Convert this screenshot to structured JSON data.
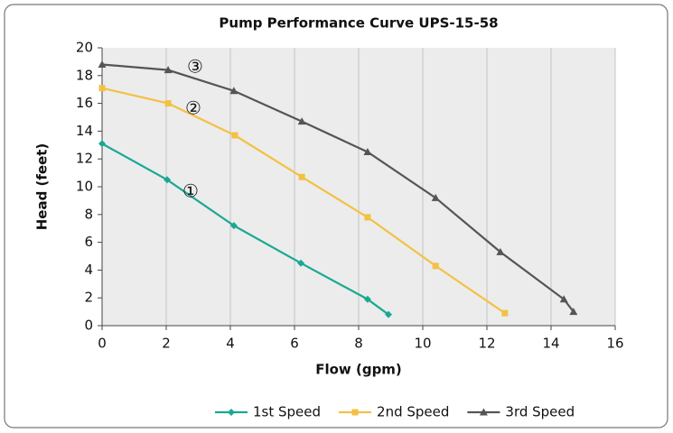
{
  "chart_data": {
    "type": "line",
    "title": "Pump Performance Curve UPS-15-58",
    "xlabel": "Flow (gpm)",
    "ylabel": "Head (feet)",
    "xlim": [
      0,
      16
    ],
    "xticks": [
      0,
      2,
      4,
      6,
      8,
      10,
      12,
      14,
      16
    ],
    "ylim": [
      0,
      20
    ],
    "yticks": [
      0,
      2,
      4,
      6,
      8,
      10,
      12,
      14,
      16,
      18,
      20
    ],
    "grid": "x",
    "legend": "bottom",
    "annotations": [
      "①",
      "②",
      "③"
    ],
    "series": [
      {
        "name": "1st Speed",
        "color": "#1aa893",
        "marker": "diamond",
        "x": [
          0,
          2.03,
          4.11,
          6.2,
          8.28,
          8.93
        ],
        "values": [
          13.1,
          10.5,
          7.2,
          4.5,
          1.9,
          0.8
        ]
      },
      {
        "name": "2nd Speed",
        "color": "#f3c143",
        "marker": "square",
        "x": [
          0,
          2.06,
          4.14,
          6.23,
          8.28,
          10.4,
          12.56
        ],
        "values": [
          17.1,
          16.0,
          13.7,
          10.7,
          7.8,
          4.3,
          0.9
        ]
      },
      {
        "name": "3rd Speed",
        "color": "#555555",
        "marker": "triangle",
        "x": [
          0,
          2.06,
          4.11,
          6.23,
          8.28,
          10.4,
          12.42,
          14.4,
          14.7
        ],
        "values": [
          18.8,
          18.4,
          16.9,
          14.7,
          12.5,
          9.2,
          5.3,
          1.9,
          1.0
        ]
      }
    ]
  }
}
